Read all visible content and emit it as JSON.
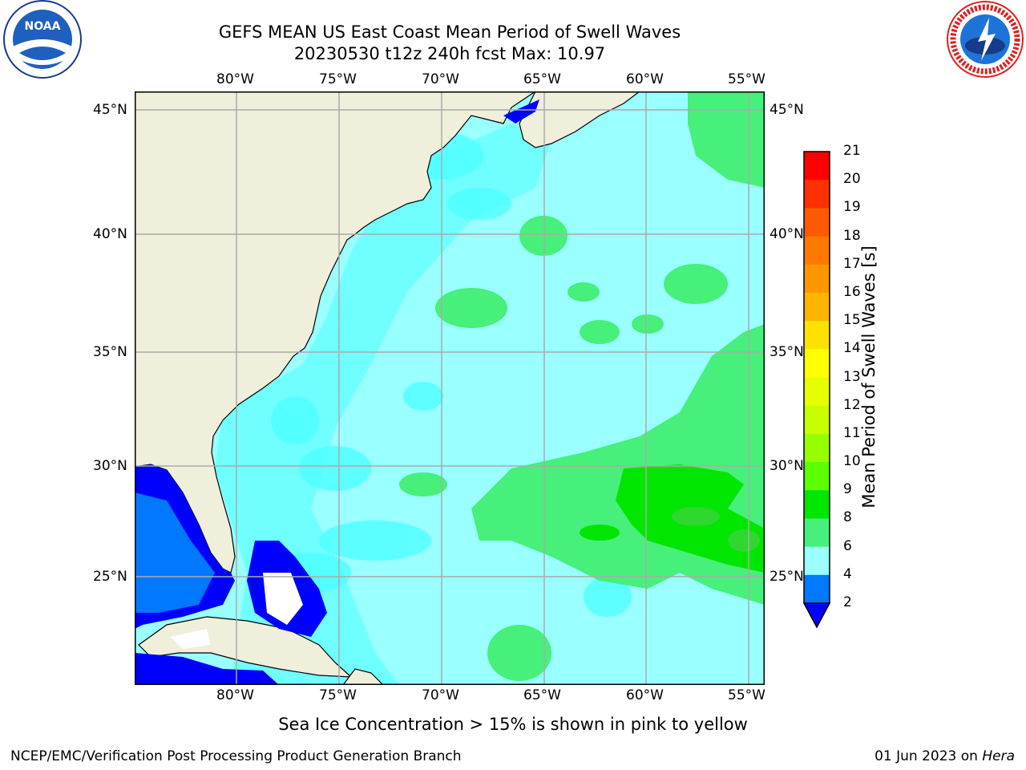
{
  "title": {
    "line1": "GEFS MEAN US East Coast Mean Period of Swell Waves",
    "line2": "20230530 t12z 240h fcst   Max: 10.97"
  },
  "logos": {
    "noaa_text": "NOAA",
    "nws_text": "NATIONAL WEATHER SERVICE"
  },
  "map": {
    "lon_labels": [
      "80°W",
      "75°W",
      "70°W",
      "65°W",
      "60°W",
      "55°W"
    ],
    "lat_labels": [
      "45°N",
      "40°N",
      "35°N",
      "30°N",
      "25°N"
    ],
    "lat_labels_right": [
      "45°N",
      "40°N",
      "35°N",
      "30°N",
      "25°N"
    ]
  },
  "colorbar": {
    "label": "Mean Period of Swell Waves [s]",
    "ticks": [
      "21",
      "20",
      "19",
      "18",
      "17",
      "16",
      "15",
      "14",
      "13",
      "12",
      "11",
      "10",
      "9",
      "8",
      "6",
      "4",
      "2"
    ],
    "colors": [
      "#ff0000",
      "#ff3000",
      "#ff5a00",
      "#ff7800",
      "#ff9600",
      "#ffb400",
      "#ffe100",
      "#ffff00",
      "#e6ff00",
      "#c8ff00",
      "#96ff00",
      "#5aff00",
      "#00e600",
      "#46f07a",
      "#99ffff",
      "#4dffff",
      "#00ffff",
      "#00dcff",
      "#0078ff",
      "#0000ff"
    ]
  },
  "note": "Sea Ice Concentration > 15% is shown in pink to yellow",
  "footer": {
    "left": "NCEP/EMC/Verification Post Processing Product Generation Branch",
    "right_date": "01 Jun 2023 on ",
    "right_machine": "Hera"
  }
}
